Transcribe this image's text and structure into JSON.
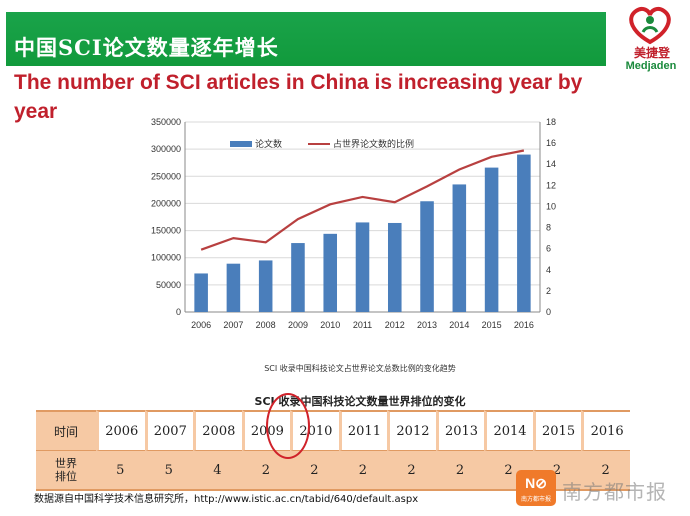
{
  "header": {
    "cn_title": "中国SCI论文数量逐年增长",
    "en_title": "The number of SCI articles in China is increasing year by year"
  },
  "logo": {
    "cn": "美捷登",
    "en": "Medjaden",
    "colors": {
      "heart_red": "#d0222a",
      "heart_green": "#1a8a3c"
    }
  },
  "chart_data": {
    "type": "bar",
    "categories": [
      "2006",
      "2007",
      "2008",
      "2009",
      "2010",
      "2011",
      "2012",
      "2013",
      "2014",
      "2015",
      "2016"
    ],
    "series": [
      {
        "name": "论文数",
        "type": "bar",
        "axis": "left",
        "color": "#4a7ebb",
        "values": [
          71000,
          89000,
          95000,
          127000,
          144000,
          165000,
          164000,
          204000,
          235000,
          266000,
          290000
        ]
      },
      {
        "name": "占世界论文数的比例",
        "type": "line",
        "axis": "right",
        "color": "#b84040",
        "values": [
          5.9,
          7.0,
          6.6,
          8.8,
          10.2,
          10.9,
          10.4,
          11.9,
          13.5,
          14.7,
          15.3
        ]
      }
    ],
    "left_axis": {
      "ylim": [
        0,
        350000
      ],
      "ticks": [
        0,
        50000,
        100000,
        150000,
        200000,
        250000,
        300000,
        350000
      ]
    },
    "right_axis": {
      "ylim": [
        0,
        18
      ],
      "ticks": [
        0,
        2,
        4,
        6,
        8,
        10,
        12,
        14,
        16,
        18
      ]
    },
    "legend_position": "top",
    "grid": true,
    "caption": "SCI 收录中国科技论文占世界论文总数比例的变化趋势"
  },
  "ranking": {
    "title": "SCI 收录中国科技论文数量世界排位的变化",
    "row1_header": "时间",
    "row2_header_line1": "世界",
    "row2_header_line2": "排位",
    "years": [
      "2006",
      "2007",
      "2008",
      "2009",
      "2010",
      "2011",
      "2012",
      "2013",
      "2014",
      "2015",
      "2016"
    ],
    "ranks": [
      "5",
      "5",
      "4",
      "2",
      "2",
      "2",
      "2",
      "2",
      "2",
      "2",
      "2"
    ],
    "highlighted_year": "2009"
  },
  "source": "数据源自中国科学技术信息研究所，http://www.istic.ac.cn/tabid/640/default.aspx",
  "watermark": {
    "icon_text": "N⊘",
    "icon_sub": "南方都市报",
    "text": "南方都市报"
  }
}
